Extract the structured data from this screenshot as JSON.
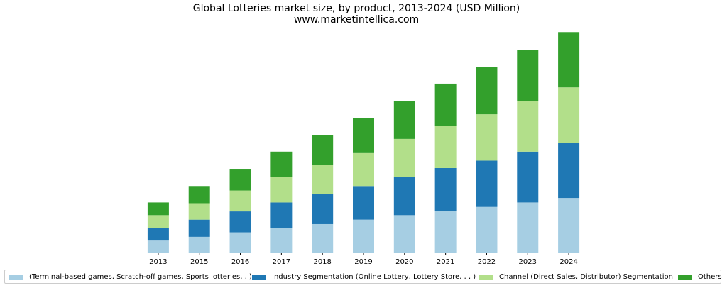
{
  "chart_data": {
    "type": "bar",
    "stacked": true,
    "title": "Global Lotteries market size, by product, 2013-2024 (USD Million)",
    "subtitle": "www.marketintellica.com",
    "categories": [
      "2013",
      "2015",
      "2016",
      "2017",
      "2018",
      "2019",
      "2020",
      "2021",
      "2022",
      "2023",
      "2024"
    ],
    "series": [
      {
        "name": "(Terminal-based games, Scratch-off games, Sports lotteries, , )",
        "color": "#a6cee3",
        "values": [
          16,
          21,
          27,
          33,
          38,
          44,
          50,
          56,
          61,
          67,
          73
        ]
      },
      {
        "name": "Industry Segmentation (Online Lottery, Lottery Store, , , )",
        "color": "#1f78b4",
        "values": [
          17,
          23,
          28,
          34,
          40,
          45,
          51,
          57,
          62,
          68,
          74
        ]
      },
      {
        "name": "Channel (Direct Sales, Distributor) Segmentation",
        "color": "#b2df8a",
        "values": [
          17,
          22,
          28,
          34,
          39,
          45,
          51,
          56,
          62,
          68,
          74
        ]
      },
      {
        "name": "Others",
        "color": "#33a02c",
        "values": [
          17,
          23,
          29,
          34,
          40,
          46,
          51,
          57,
          63,
          68,
          74
        ]
      }
    ],
    "ylim": [
      0,
      300
    ],
    "grid": false,
    "legend_position": "bottom"
  }
}
